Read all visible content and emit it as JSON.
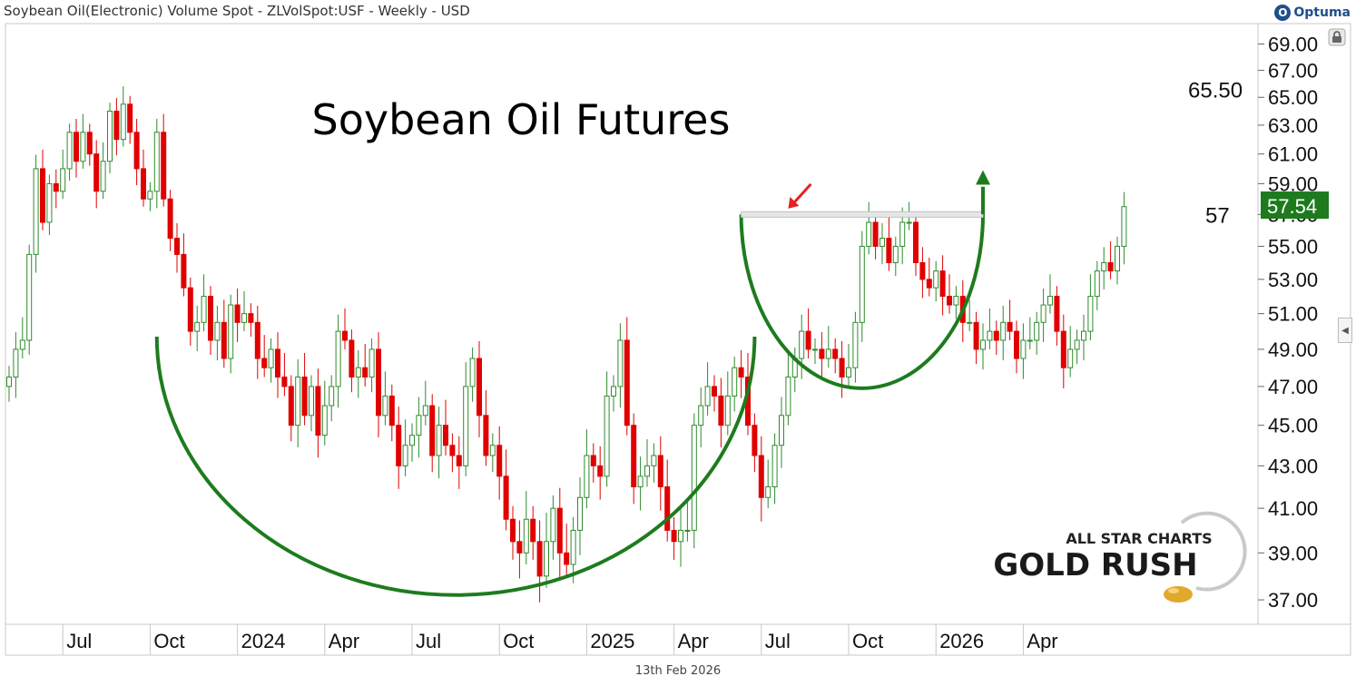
{
  "window": {
    "title": "Soybean Oil(Electronic) Volume Spot - ZLVolSpot:USF - Weekly - USD",
    "brand": "Optuma",
    "date_footer": "13th Feb 2026"
  },
  "icons": {
    "brand": "optuma-logo-icon",
    "lock": "lock-icon",
    "collapse": "chevron-left-icon"
  },
  "colors": {
    "up": "#2e8b2e",
    "down": "#e00000",
    "pattern": "#1e7b1e",
    "price_badge": "#1d7a1d",
    "arrow": "#e52222"
  },
  "chart_data": {
    "type": "candlestick",
    "title": "Soybean Oil Futures",
    "ylim": [
      36.0,
      70.6
    ],
    "y_scale": "log",
    "y_ticks": [
      "69.00",
      "67.00",
      "65.00",
      "63.00",
      "61.00",
      "59.00",
      "57.00",
      "55.00",
      "53.00",
      "51.00",
      "49.00",
      "47.00",
      "45.00",
      "43.00",
      "41.00",
      "39.00",
      "37.00"
    ],
    "x_ticks": [
      "Jul",
      "Oct",
      "2024",
      "Apr",
      "Jul",
      "Oct",
      "2025",
      "Apr",
      "Jul",
      "Oct",
      "2026",
      "Apr"
    ],
    "last_price": "57.54",
    "target_label": "65.50",
    "target_value": 65.5,
    "resistance_label": "57",
    "resistance_value": 57.0,
    "watermark": {
      "line1": "ALL STAR CHARTS",
      "line2": "GOLD RUSH"
    },
    "patterns": [
      {
        "name": "cup",
        "from": "2023-10-06",
        "to": "2025-06-20",
        "rim": 49.7,
        "bottom": 37.2
      },
      {
        "name": "handle",
        "from": "2025-06-06",
        "to": "2026-02-13",
        "rim": 57.0,
        "bottom": 46.9
      }
    ],
    "first_week": "2023-05-05",
    "weeks_per_tick": 13,
    "closes": [
      47.5,
      49.0,
      49.5,
      54.5,
      60.0,
      56.5,
      59.0,
      58.5,
      60.0,
      62.5,
      60.5,
      62.5,
      61.0,
      58.5,
      60.5,
      64.0,
      62.0,
      64.5,
      62.5,
      60.0,
      58.0,
      58.5,
      62.5,
      58.0,
      55.5,
      54.5,
      52.5,
      50.0,
      50.5,
      52.0,
      49.5,
      50.5,
      48.5,
      51.5,
      50.5,
      51.0,
      50.5,
      48.5,
      48.0,
      49.0,
      47.5,
      47.0,
      45.0,
      47.5,
      45.5,
      47.0,
      44.5,
      46.0,
      47.0,
      50.0,
      49.5,
      47.5,
      48.0,
      47.5,
      49.0,
      45.5,
      46.5,
      45.0,
      43.0,
      44.0,
      44.5,
      45.5,
      46.0,
      43.5,
      45.0,
      44.0,
      43.5,
      43.0,
      47.0,
      48.5,
      45.5,
      43.5,
      44.0,
      42.5,
      40.5,
      39.5,
      39.0,
      40.5,
      39.5,
      38.0,
      39.5,
      41.0,
      39.0,
      38.5,
      40.0,
      41.5,
      43.5,
      43.0,
      42.5,
      46.5,
      47.0,
      49.5,
      45.0,
      42.0,
      42.5,
      43.0,
      43.5,
      42.0,
      40.0,
      39.5,
      40.0,
      40.0,
      45.0,
      46.0,
      47.0,
      46.5,
      45.0,
      46.5,
      48.0,
      47.5,
      45.0,
      43.5,
      41.5,
      42.0,
      44.0,
      45.5,
      47.5,
      48.5,
      50.0,
      49.0,
      49.0,
      48.5,
      49.0,
      48.5,
      47.5,
      48.0,
      50.5,
      55.0,
      56.5,
      55.0,
      55.5,
      54.0,
      55.0,
      56.5,
      56.5,
      54.0,
      53.0,
      52.5,
      53.5,
      52.0,
      51.5,
      52.0,
      50.5,
      50.5,
      49.0,
      49.5,
      50.0,
      49.5,
      50.5,
      50.0,
      48.5,
      49.5,
      49.5,
      50.5,
      51.5,
      52.0,
      50.0,
      48.0,
      49.0,
      49.5,
      50.0,
      52.0,
      53.5,
      54.0,
      53.5,
      55.0,
      57.5
    ]
  }
}
